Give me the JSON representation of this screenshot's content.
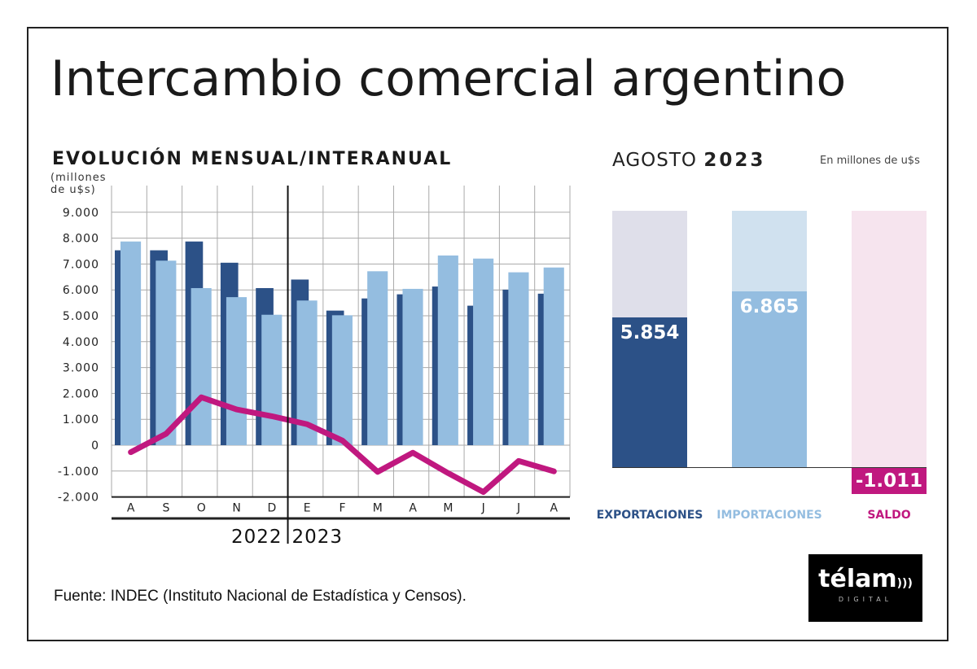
{
  "title": "Intercambio comercial argentino",
  "source": "Fuente: INDEC (Instituto Nacional de Estadística y Censos).",
  "logo": {
    "text": "télam",
    "sub": "DIGITAL"
  },
  "chart_data": [
    {
      "type": "bar",
      "title": "EVOLUCIÓN MENSUAL/INTERANUAL",
      "ylabel_line1": "(millones",
      "ylabel_line2": "de u$s)",
      "ylim": [
        -2000,
        9300
      ],
      "yticks": [
        9000,
        8000,
        7000,
        6000,
        5000,
        4000,
        3000,
        2000,
        1000,
        0,
        -1000,
        -2000
      ],
      "ytick_labels": [
        "9.000",
        "8.000",
        "7.000",
        "6.000",
        "5.000",
        "4.000",
        "3.000",
        "2.000",
        "1.000",
        "0",
        "-1.000",
        "-2.000"
      ],
      "categories": [
        "A",
        "S",
        "O",
        "N",
        "D",
        "E",
        "F",
        "M",
        "A",
        "M",
        "J",
        "J",
        "A"
      ],
      "year_labels": [
        "2022",
        "2023"
      ],
      "grid": true,
      "colors": {
        "exports": "#2c5187",
        "imports": "#94bde0",
        "saldo": "#c0187f"
      },
      "series": [
        {
          "key": "exports",
          "type": "bar",
          "values": [
            7530,
            7530,
            7870,
            7050,
            6070,
            6400,
            5200,
            5670,
            5830,
            6130,
            5390,
            6010,
            5854
          ]
        },
        {
          "key": "imports",
          "type": "bar",
          "values": [
            7870,
            7130,
            6070,
            5720,
            5040,
            5590,
            5020,
            6720,
            6040,
            7330,
            7210,
            6680,
            6865
          ]
        },
        {
          "key": "saldo",
          "type": "line",
          "values": [
            -270,
            440,
            1850,
            1380,
            1120,
            810,
            180,
            -1030,
            -290,
            -1080,
            -1810,
            -610,
            -1011
          ]
        }
      ]
    },
    {
      "type": "bar",
      "title": "AGOSTO",
      "title_bold": "2023",
      "subtitle": "En millones de u$s",
      "ylim": [
        -1100,
        10000
      ],
      "categories": [
        "EXPORTACIONES",
        "IMPORTACIONES",
        "SALDO"
      ],
      "values": [
        5854,
        6865,
        -1011
      ],
      "value_labels": [
        "5.854",
        "6.865",
        "-1.011"
      ],
      "colors": [
        "#2c5187",
        "#94bde0",
        "#c0187f"
      ],
      "track_colors": [
        "#dfdfea",
        "#d0e1ef",
        "#f6e4ee"
      ]
    }
  ]
}
